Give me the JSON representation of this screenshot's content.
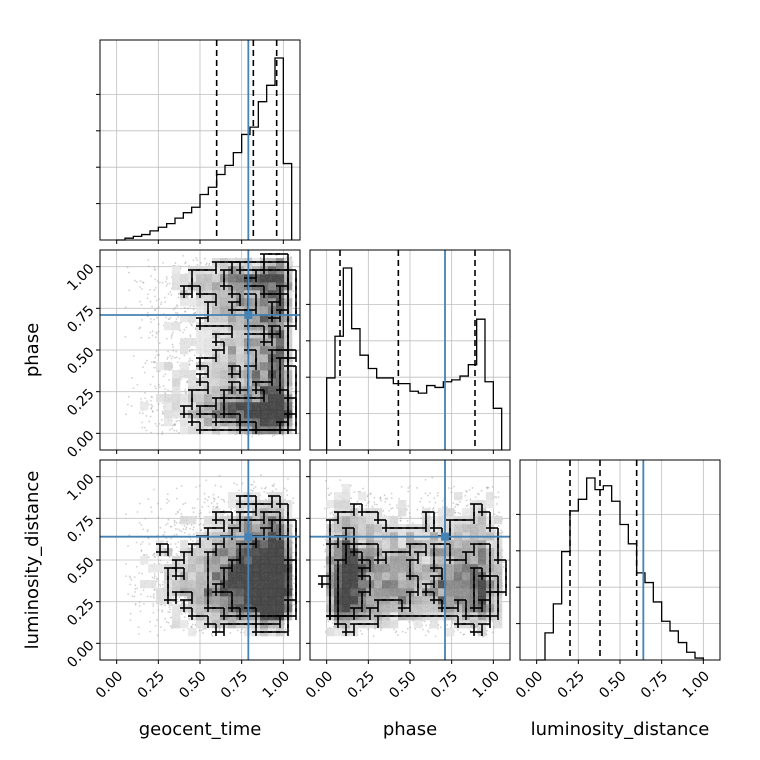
{
  "chart_data": {
    "type": "corner",
    "parameters": [
      "geocent_time",
      "phase",
      "luminosity_distance"
    ],
    "truth": {
      "geocent_time": 0.79,
      "phase": 0.71,
      "luminosity_distance": 0.64
    },
    "axis_range": [
      -0.1,
      1.1
    ],
    "tick_values": [
      0.0,
      0.25,
      0.5,
      0.75,
      1.0
    ],
    "tick_labels": [
      "0.00",
      "0.25",
      "0.50",
      "0.75",
      "1.00"
    ],
    "colors": {
      "truth": "#4682b4",
      "histogram": "#000000",
      "grid": "#bfbfbf",
      "points": "#9a9a9a"
    },
    "grid": true,
    "histograms": {
      "geocent_time": {
        "bin_edges": [
          0.0,
          0.05,
          0.1,
          0.15,
          0.2,
          0.25,
          0.3,
          0.35,
          0.4,
          0.45,
          0.5,
          0.55,
          0.6,
          0.65,
          0.7,
          0.75,
          0.8,
          0.85,
          0.9,
          0.95,
          1.0,
          1.05
        ],
        "counts": [
          0,
          0.01,
          0.02,
          0.03,
          0.05,
          0.07,
          0.09,
          0.12,
          0.15,
          0.18,
          0.25,
          0.29,
          0.36,
          0.41,
          0.48,
          0.58,
          0.62,
          0.76,
          0.85,
          1.0,
          0.42
        ],
        "quantiles": [
          0.6,
          0.82,
          0.96
        ]
      },
      "phase": {
        "bin_edges": [
          0.0,
          0.05,
          0.1,
          0.15,
          0.2,
          0.25,
          0.3,
          0.35,
          0.4,
          0.45,
          0.5,
          0.55,
          0.6,
          0.65,
          0.7,
          0.75,
          0.8,
          0.85,
          0.9,
          0.95,
          1.0,
          1.05
        ],
        "counts": [
          0.38,
          0.6,
          0.96,
          0.64,
          0.5,
          0.43,
          0.38,
          0.38,
          0.35,
          0.35,
          0.31,
          0.3,
          0.34,
          0.33,
          0.36,
          0.37,
          0.39,
          0.45,
          0.69,
          0.36,
          0.22
        ],
        "quantiles": [
          0.08,
          0.43,
          0.89
        ]
      },
      "luminosity_distance": {
        "bin_edges": [
          0.0,
          0.05,
          0.1,
          0.15,
          0.2,
          0.25,
          0.3,
          0.35,
          0.4,
          0.45,
          0.5,
          0.55,
          0.6,
          0.65,
          0.7,
          0.75,
          0.8,
          0.85,
          0.9,
          0.95,
          1.0
        ],
        "counts": [
          0,
          0.14,
          0.29,
          0.56,
          0.77,
          0.83,
          0.94,
          0.88,
          0.9,
          0.82,
          0.7,
          0.6,
          0.45,
          0.4,
          0.3,
          0.2,
          0.15,
          0.09,
          0.04,
          0.01
        ],
        "quantiles": [
          0.2,
          0.38,
          0.6
        ]
      }
    }
  }
}
